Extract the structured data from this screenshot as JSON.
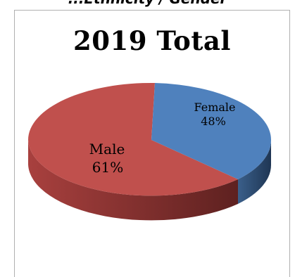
{
  "header_cut_text": "...Ethnicity / Gender",
  "chart_data": {
    "type": "pie",
    "title": "2019 Total",
    "slices": [
      {
        "label": "Female",
        "value_label": "48%",
        "value": 48,
        "color": "#4f81bd",
        "side_color": "#2d4a6c"
      },
      {
        "label": "Male",
        "value_label": "61%",
        "value": 61,
        "color": "#c0504d",
        "side_color": "#7a2b2a"
      }
    ],
    "three_d": true,
    "legend": "none"
  }
}
